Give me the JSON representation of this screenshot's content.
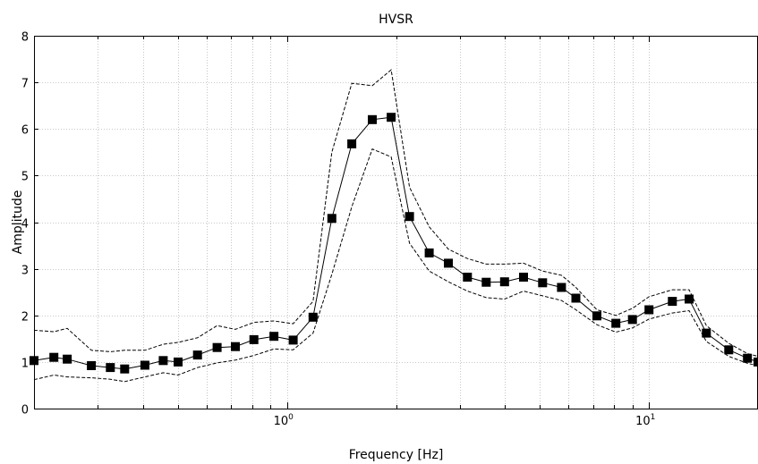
{
  "chart_data": {
    "type": "line",
    "title": "HVSR",
    "xlabel": "Frequency [Hz]",
    "ylabel": "Amplitude",
    "xscale": "log",
    "xlim": [
      0.2,
      20
    ],
    "ylim": [
      0,
      8
    ],
    "yticks": [
      0,
      1,
      2,
      3,
      4,
      5,
      6,
      7,
      8
    ],
    "xticks_major": [
      {
        "value": 1,
        "base": "10",
        "exp": "0"
      },
      {
        "value": 10,
        "base": "10",
        "exp": "1"
      }
    ],
    "grid": true,
    "legend": "none",
    "series": [
      {
        "role": "mean",
        "color": "#000000",
        "style": "solid",
        "marker": "square",
        "x": [
          0.2,
          0.227,
          0.247,
          0.288,
          0.325,
          0.356,
          0.405,
          0.455,
          0.5,
          0.566,
          0.641,
          0.72,
          0.81,
          0.92,
          1.04,
          1.18,
          1.33,
          1.51,
          1.72,
          1.94,
          2.18,
          2.47,
          2.79,
          3.15,
          3.55,
          3.99,
          4.5,
          5.08,
          5.73,
          6.28,
          7.18,
          8.1,
          9.0,
          10.0,
          11.6,
          12.9,
          14.4,
          16.6,
          18.7,
          20.0
        ],
        "y": [
          1.03,
          1.1,
          1.06,
          0.92,
          0.88,
          0.85,
          0.93,
          1.03,
          1.0,
          1.15,
          1.31,
          1.33,
          1.48,
          1.55,
          1.47,
          1.96,
          4.08,
          5.68,
          6.2,
          6.25,
          4.12,
          3.34,
          3.12,
          2.82,
          2.71,
          2.72,
          2.82,
          2.7,
          2.6,
          2.37,
          1.99,
          1.83,
          1.91,
          2.12,
          2.3,
          2.35,
          1.62,
          1.26,
          1.08,
          1.0
        ]
      },
      {
        "role": "upper",
        "color": "#000000",
        "style": "dashed",
        "marker": "none",
        "x": [
          0.2,
          0.227,
          0.247,
          0.288,
          0.325,
          0.356,
          0.405,
          0.455,
          0.5,
          0.566,
          0.641,
          0.72,
          0.81,
          0.92,
          1.04,
          1.18,
          1.33,
          1.51,
          1.72,
          1.94,
          2.18,
          2.47,
          2.79,
          3.15,
          3.55,
          3.99,
          4.5,
          5.08,
          5.73,
          6.28,
          7.18,
          8.1,
          9.0,
          10.0,
          11.6,
          12.9,
          14.4,
          16.6,
          18.7,
          20.0
        ],
        "y": [
          1.68,
          1.65,
          1.72,
          1.25,
          1.22,
          1.25,
          1.25,
          1.38,
          1.42,
          1.52,
          1.78,
          1.7,
          1.85,
          1.88,
          1.82,
          2.3,
          5.5,
          6.98,
          6.93,
          7.27,
          4.75,
          3.9,
          3.42,
          3.22,
          3.1,
          3.1,
          3.12,
          2.95,
          2.86,
          2.6,
          2.12,
          2.0,
          2.15,
          2.4,
          2.55,
          2.55,
          1.78,
          1.4,
          1.18,
          1.12
        ]
      },
      {
        "role": "lower",
        "color": "#000000",
        "style": "dashed",
        "marker": "none",
        "x": [
          0.2,
          0.227,
          0.247,
          0.288,
          0.325,
          0.356,
          0.405,
          0.455,
          0.5,
          0.566,
          0.641,
          0.72,
          0.81,
          0.92,
          1.04,
          1.18,
          1.33,
          1.51,
          1.72,
          1.94,
          2.18,
          2.47,
          2.79,
          3.15,
          3.55,
          3.99,
          4.5,
          5.08,
          5.73,
          6.28,
          7.18,
          8.1,
          9.0,
          10.0,
          11.6,
          12.9,
          14.4,
          16.6,
          18.7,
          20.0
        ],
        "y": [
          0.62,
          0.72,
          0.68,
          0.66,
          0.63,
          0.58,
          0.68,
          0.77,
          0.72,
          0.88,
          0.98,
          1.04,
          1.14,
          1.28,
          1.26,
          1.62,
          2.88,
          4.33,
          5.57,
          5.4,
          3.55,
          2.95,
          2.72,
          2.52,
          2.38,
          2.35,
          2.52,
          2.42,
          2.32,
          2.12,
          1.8,
          1.64,
          1.73,
          1.92,
          2.05,
          2.1,
          1.44,
          1.12,
          0.97,
          0.92
        ]
      }
    ]
  }
}
